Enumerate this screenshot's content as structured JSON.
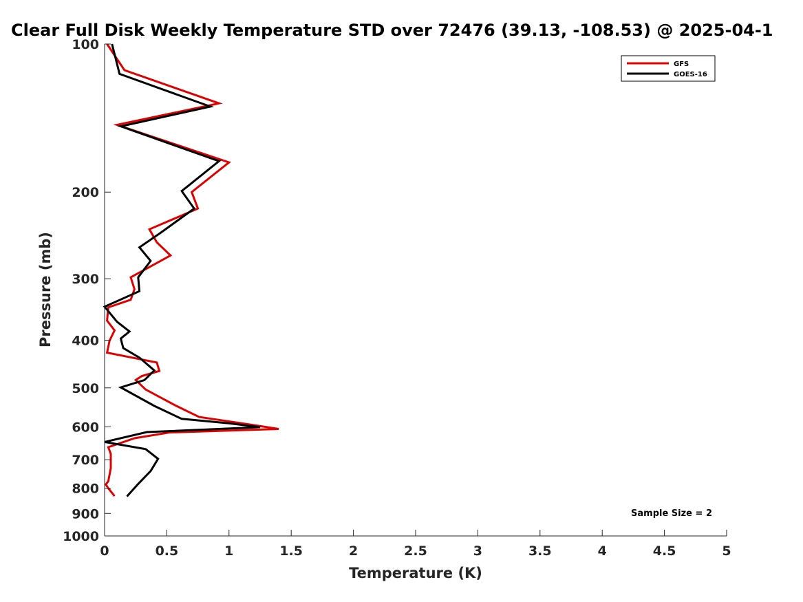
{
  "chart_data": {
    "type": "line",
    "title": "Clear Full Disk Weekly Temperature STD over 72476 (39.13, -108.53) @ 2025-04-1",
    "xlabel": "Temperature (K)",
    "ylabel": "Pressure (mb)",
    "xlim": [
      0,
      5
    ],
    "ylim": [
      100,
      1000
    ],
    "yscale": "log",
    "y_reversed": true,
    "x_ticks": [
      "0",
      "0.5",
      "1",
      "1.5",
      "2",
      "2.5",
      "3",
      "3.5",
      "4",
      "4.5",
      "5"
    ],
    "y_ticks": [
      "100",
      "200",
      "300",
      "400",
      "500",
      "600",
      "700",
      "800",
      "900",
      "1000"
    ],
    "grid": false,
    "legend_position": "top-right",
    "annotation": "Sample Size = 2",
    "series": [
      {
        "name": "GFS",
        "color": "#e00000",
        "points": [
          [
            0.02,
            100
          ],
          [
            0.16,
            113
          ],
          [
            0.92,
            132
          ],
          [
            0.1,
            146
          ],
          [
            1.0,
            174
          ],
          [
            0.7,
            200
          ],
          [
            0.75,
            216
          ],
          [
            0.36,
            238
          ],
          [
            0.42,
            253
          ],
          [
            0.53,
            269
          ],
          [
            0.21,
            298
          ],
          [
            0.24,
            315
          ],
          [
            0.21,
            331
          ],
          [
            0.03,
            343
          ],
          [
            0.02,
            365
          ],
          [
            0.08,
            382
          ],
          [
            0.04,
            401
          ],
          [
            0.02,
            424
          ],
          [
            0.42,
            444
          ],
          [
            0.44,
            462
          ],
          [
            0.3,
            473
          ],
          [
            0.25,
            482
          ],
          [
            0.33,
            504
          ],
          [
            0.57,
            543
          ],
          [
            0.76,
            573
          ],
          [
            1.12,
            591
          ],
          [
            1.4,
            606
          ],
          [
            0.52,
            616
          ],
          [
            0.24,
            633
          ],
          [
            0.03,
            660
          ],
          [
            0.05,
            681
          ],
          [
            0.05,
            728
          ],
          [
            0.03,
            774
          ],
          [
            0.01,
            786
          ],
          [
            0.03,
            800
          ],
          [
            0.08,
            830
          ]
        ]
      },
      {
        "name": "GOES-16",
        "color": "#000000",
        "points": [
          [
            0.06,
            100
          ],
          [
            0.12,
            115
          ],
          [
            0.85,
            134
          ],
          [
            0.13,
            147
          ],
          [
            0.92,
            173
          ],
          [
            0.62,
            199
          ],
          [
            0.72,
            216
          ],
          [
            0.45,
            242
          ],
          [
            0.28,
            259
          ],
          [
            0.37,
            276
          ],
          [
            0.27,
            298
          ],
          [
            0.28,
            318
          ],
          [
            0.0,
            342
          ],
          [
            0.1,
            367
          ],
          [
            0.2,
            384
          ],
          [
            0.13,
            397
          ],
          [
            0.15,
            415
          ],
          [
            0.28,
            434
          ],
          [
            0.4,
            461
          ],
          [
            0.32,
            482
          ],
          [
            0.13,
            499
          ],
          [
            0.4,
            544
          ],
          [
            0.62,
            578
          ],
          [
            1.0,
            590
          ],
          [
            1.25,
            601
          ],
          [
            0.34,
            615
          ],
          [
            0.0,
            644
          ],
          [
            0.33,
            666
          ],
          [
            0.43,
            697
          ],
          [
            0.37,
            738
          ],
          [
            0.27,
            784
          ],
          [
            0.18,
            831
          ]
        ]
      }
    ]
  }
}
